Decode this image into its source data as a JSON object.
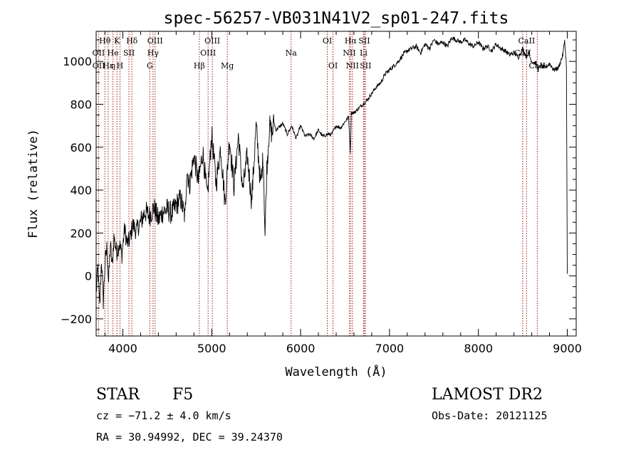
{
  "chart_data": {
    "type": "line",
    "title": "spec-56257-VB031N41V2_sp01-247.fits",
    "xlabel": "Wavelength (Å)",
    "ylabel": "Flux (relative)",
    "xlim": [
      3700,
      9100
    ],
    "ylim": [
      -280,
      1140
    ],
    "x_ticks": [
      "4000",
      "5000",
      "6000",
      "7000",
      "8000",
      "9000"
    ],
    "y_ticks": [
      "−200",
      "0",
      "200",
      "400",
      "600",
      "800",
      "1000"
    ],
    "series": [
      {
        "x": [
          3700,
          3720,
          3740,
          3760,
          3780,
          3800,
          3820,
          3840,
          3860,
          3880,
          3900,
          3930,
          3960,
          3990,
          4020,
          4050,
          4080,
          4110,
          4150,
          4200,
          4250,
          4300,
          4350,
          4400,
          4450,
          4500,
          4550,
          4600,
          4650,
          4700,
          4720,
          4750,
          4800,
          4850,
          4900,
          4950,
          5000,
          5050,
          5100,
          5150,
          5200,
          5250,
          5300,
          5350,
          5400,
          5450,
          5500,
          5550,
          5580,
          5600,
          5620,
          5650,
          5680,
          5700,
          5720,
          5750,
          5800,
          5850,
          5900,
          5950,
          6000,
          6050,
          6100,
          6150,
          6200,
          6250,
          6300,
          6350,
          6400,
          6450,
          6500,
          6540,
          6560,
          6570,
          6600,
          6650,
          6700,
          6750,
          6800,
          6850,
          6900,
          6950,
          7000,
          7050,
          7100,
          7150,
          7200,
          7250,
          7300,
          7350,
          7400,
          7450,
          7500,
          7550,
          7600,
          7650,
          7700,
          7750,
          7800,
          7850,
          7900,
          7950,
          8000,
          8050,
          8100,
          8150,
          8200,
          8250,
          8300,
          8350,
          8400,
          8450,
          8500,
          8540,
          8560,
          8600,
          8650,
          8670,
          8700,
          8750,
          8800,
          8850,
          8900,
          8950,
          8970,
          8990,
          9000
        ],
        "y": [
          -80,
          40,
          -150,
          80,
          -120,
          60,
          130,
          -30,
          150,
          40,
          180,
          110,
          150,
          100,
          220,
          150,
          170,
          240,
          210,
          250,
          300,
          280,
          320,
          260,
          300,
          310,
          290,
          330,
          360,
          270,
          500,
          420,
          560,
          440,
          580,
          360,
          660,
          430,
          600,
          340,
          640,
          420,
          650,
          400,
          560,
          350,
          700,
          420,
          560,
          190,
          500,
          700,
          660,
          720,
          680,
          690,
          710,
          660,
          700,
          640,
          700,
          650,
          660,
          640,
          680,
          650,
          660,
          660,
          700,
          690,
          720,
          740,
          580,
          760,
          760,
          780,
          800,
          820,
          850,
          880,
          900,
          940,
          960,
          980,
          1000,
          1030,
          1050,
          1060,
          1070,
          1040,
          1080,
          1060,
          1100,
          1080,
          1090,
          1070,
          1110,
          1100,
          1090,
          1100,
          1080,
          1070,
          1090,
          1060,
          1070,
          1050,
          1080,
          1060,
          1050,
          1030,
          1040,
          1020,
          1060,
          1020,
          1040,
          1000,
          990,
          960,
          980,
          970,
          990,
          960,
          970,
          1030,
          1100,
          980,
          10
        ]
      }
    ],
    "line_labels": [
      {
        "text": "Hθ",
        "x": 3798,
        "row": 1
      },
      {
        "text": "K",
        "x": 3934,
        "row": 1
      },
      {
        "text": "Hδ",
        "x": 4102,
        "row": 1
      },
      {
        "text": "OIII",
        "x": 4363,
        "row": 1
      },
      {
        "text": "OIII",
        "x": 5007,
        "row": 1
      },
      {
        "text": "OI",
        "x": 6300,
        "row": 1
      },
      {
        "text": "Hα",
        "x": 6563,
        "row": 1
      },
      {
        "text": "SII",
        "x": 6716,
        "row": 1
      },
      {
        "text": "CaII",
        "x": 8542,
        "row": 1
      },
      {
        "text": "OII",
        "x": 3727,
        "row": 2
      },
      {
        "text": "He",
        "x": 3889,
        "row": 2
      },
      {
        "text": "SII",
        "x": 4069,
        "row": 2
      },
      {
        "text": "Hγ",
        "x": 4340,
        "row": 2
      },
      {
        "text": "OIII",
        "x": 4959,
        "row": 2
      },
      {
        "text": "Na",
        "x": 5893,
        "row": 2
      },
      {
        "text": "NII",
        "x": 6548,
        "row": 2
      },
      {
        "text": "Li",
        "x": 6708,
        "row": 2
      },
      {
        "text": "CaII",
        "x": 8498,
        "row": 2
      },
      {
        "text": "OII",
        "x": 3729,
        "row": 3
      },
      {
        "text": "Hε",
        "x": 3835,
        "row": 3
      },
      {
        "text": "η",
        "x": 3890,
        "row": 3
      },
      {
        "text": "H",
        "x": 3968,
        "row": 3
      },
      {
        "text": "G",
        "x": 4304,
        "row": 3
      },
      {
        "text": "Hβ",
        "x": 4861,
        "row": 3
      },
      {
        "text": "Mg",
        "x": 5175,
        "row": 3
      },
      {
        "text": "OI",
        "x": 6364,
        "row": 3
      },
      {
        "text": "NII",
        "x": 6583,
        "row": 3
      },
      {
        "text": "SII",
        "x": 6731,
        "row": 3
      },
      {
        "text": "CaII",
        "x": 8662,
        "row": 3
      }
    ],
    "line_wavelengths": [
      3727,
      3798,
      3835,
      3889,
      3934,
      3968,
      4069,
      4102,
      4304,
      4340,
      4363,
      4861,
      4959,
      5007,
      5175,
      5893,
      6300,
      6364,
      6548,
      6563,
      6583,
      6708,
      6716,
      6731,
      8498,
      8542,
      8662
    ],
    "grid": false
  },
  "info": {
    "class": "STAR",
    "subclass": "F5",
    "survey": "LAMOST DR2",
    "cz": "cz = −71.2 ± 4.0 km/s",
    "obs_date": "Obs-Date: 20121125",
    "radec": "RA =  30.94992, DEC =  39.24370"
  },
  "colors": {
    "line_marker": "#a01515",
    "spectrum": "#000000"
  }
}
